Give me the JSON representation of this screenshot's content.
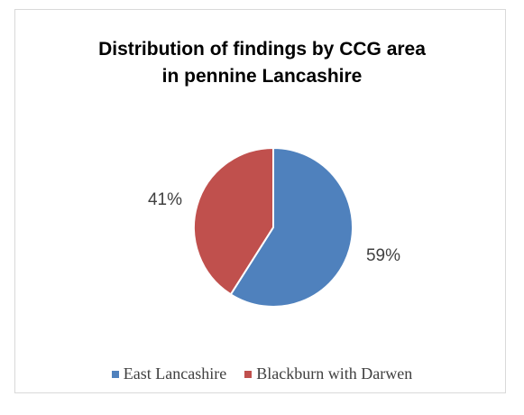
{
  "chart_data": {
    "type": "pie",
    "title_lines": [
      "Distribution of findings by CCG area",
      "in pennine Lancashire"
    ],
    "categories": [
      "East Lancashire",
      "Blackburn with Darwen"
    ],
    "values": [
      59,
      41
    ],
    "data_labels": [
      "59%",
      "41%"
    ],
    "colors": [
      "#4F81BD",
      "#C0504D"
    ],
    "legend_position": "bottom"
  }
}
